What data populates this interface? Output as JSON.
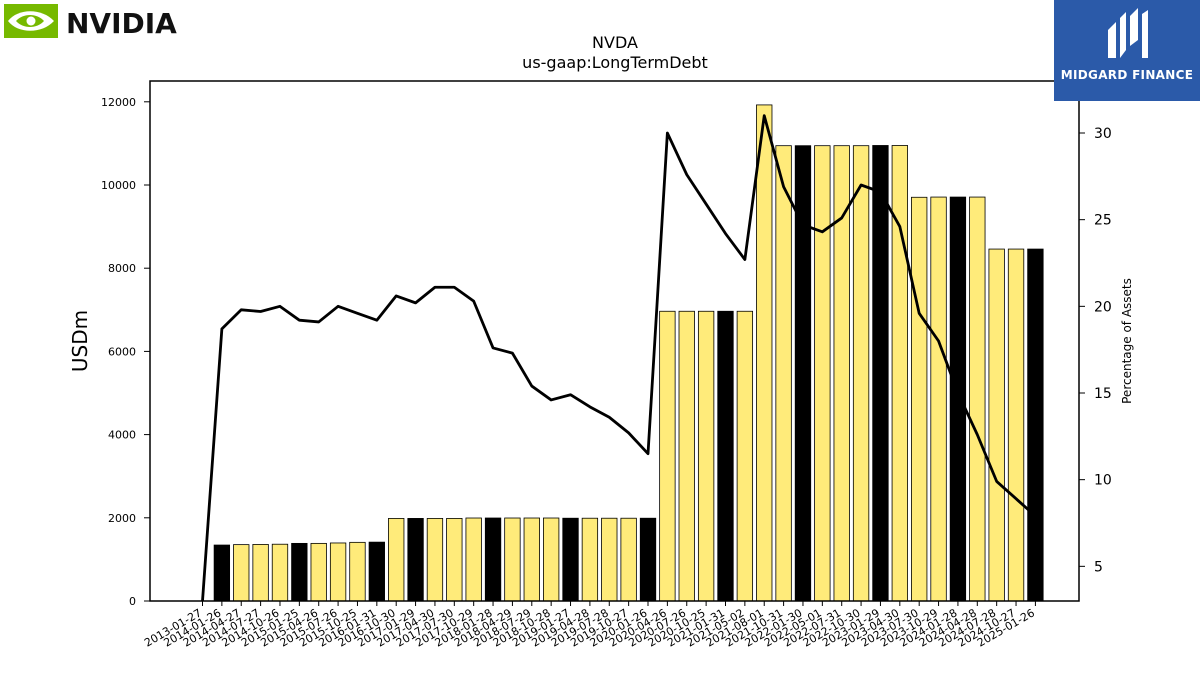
{
  "brand": {
    "left_logo": "NVIDIA",
    "right_logo": "MIDGARD FINANCE"
  },
  "chart_data": {
    "type": "bar",
    "title": "NVDA",
    "subtitle": "us-gaap:LongTermDebt",
    "ylabel": "USDm",
    "y2label": "Percentage of Assets",
    "ylim": [
      0,
      12500
    ],
    "y2lim": [
      3,
      33
    ],
    "yticks": [
      0,
      2000,
      4000,
      6000,
      8000,
      10000,
      12000
    ],
    "y2ticks": [
      5,
      10,
      15,
      20,
      25,
      30
    ],
    "categories": [
      "2013-01-27",
      "2014-01-26",
      "2014-04-27",
      "2014-07-27",
      "2014-10-26",
      "2015-01-25",
      "2015-04-26",
      "2015-07-26",
      "2015-10-25",
      "2016-01-31",
      "2016-10-30",
      "2017-01-29",
      "2017-04-30",
      "2017-07-30",
      "2017-10-29",
      "2018-01-28",
      "2018-04-29",
      "2018-07-29",
      "2018-10-28",
      "2019-01-27",
      "2019-04-28",
      "2019-07-28",
      "2019-10-27",
      "2020-01-26",
      "2020-04-26",
      "2020-07-26",
      "2020-10-25",
      "2021-01-31",
      "2021-05-02",
      "2021-08-01",
      "2021-10-31",
      "2022-01-30",
      "2022-05-01",
      "2022-07-31",
      "2022-10-30",
      "2023-01-29",
      "2023-04-30",
      "2023-07-30",
      "2023-10-29",
      "2024-01-28",
      "2024-04-28",
      "2024-07-28",
      "2024-10-27",
      "2025-01-26"
    ],
    "series": [
      {
        "type": "bar",
        "values": [
          0,
          1345,
          1355,
          1360,
          1365,
          1385,
          1385,
          1395,
          1410,
          1415,
          1985,
          1985,
          1985,
          1985,
          1995,
          1995,
          1995,
          1995,
          1995,
          1990,
          1990,
          1990,
          1990,
          1990,
          6965,
          6965,
          6965,
          6965,
          6965,
          11925,
          10945,
          10945,
          10945,
          10945,
          10945,
          10950,
          10950,
          9705,
          9710,
          9710,
          9710,
          8460,
          8460,
          8460
        ],
        "highlight": [
          false,
          true,
          false,
          false,
          false,
          true,
          false,
          false,
          false,
          true,
          false,
          true,
          false,
          false,
          false,
          true,
          false,
          false,
          false,
          true,
          false,
          false,
          false,
          true,
          false,
          false,
          false,
          true,
          false,
          false,
          false,
          true,
          false,
          false,
          false,
          true,
          false,
          false,
          false,
          true,
          false,
          false,
          false,
          true
        ]
      },
      {
        "type": "line",
        "axis": "right",
        "values": [
          3.0,
          18.7,
          19.8,
          19.7,
          20.0,
          19.2,
          19.1,
          20.0,
          19.6,
          19.2,
          20.6,
          20.2,
          21.1,
          21.1,
          20.3,
          17.6,
          17.3,
          15.4,
          14.6,
          14.9,
          14.2,
          13.6,
          12.7,
          11.5,
          30.0,
          27.6,
          25.9,
          24.2,
          22.7,
          31.0,
          26.9,
          24.7,
          24.3,
          25.1,
          27.0,
          26.6,
          24.6,
          19.6,
          18.0,
          15.0,
          12.6,
          9.9,
          8.9,
          7.9
        ]
      }
    ],
    "colors": {
      "bar": "#ffeb7a",
      "bar_highlight": "#000000",
      "line": "#000000"
    },
    "legend": "none",
    "grid": false
  }
}
